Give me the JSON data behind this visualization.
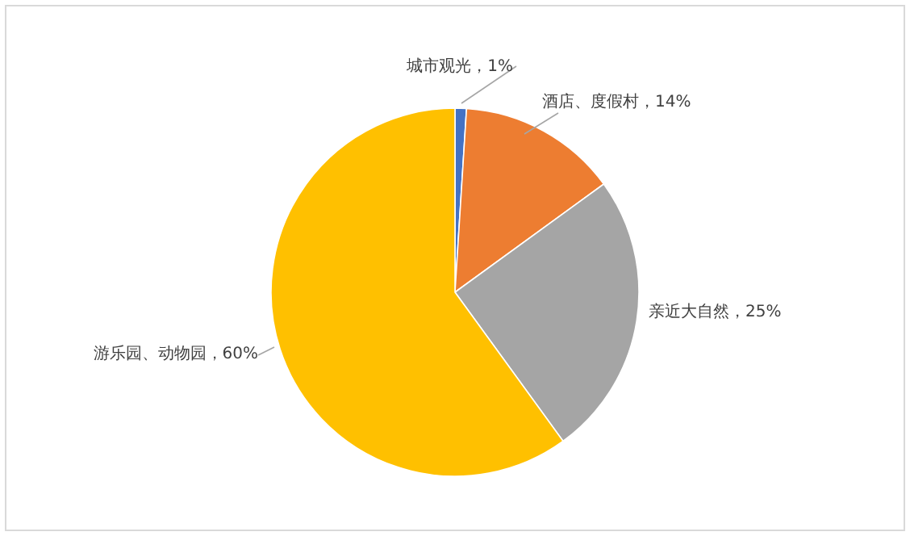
{
  "chart_data": {
    "type": "pie",
    "categories": [
      "城市观光",
      "酒店、度假村",
      "亲近大自然",
      "游乐园、动物园"
    ],
    "values": [
      1,
      14,
      25,
      60
    ],
    "colors": [
      "#4472c4",
      "#ed7d31",
      "#a5a5a5",
      "#ffc000"
    ],
    "value_labels": [
      "1%",
      "14%",
      "25%",
      "60%"
    ]
  }
}
